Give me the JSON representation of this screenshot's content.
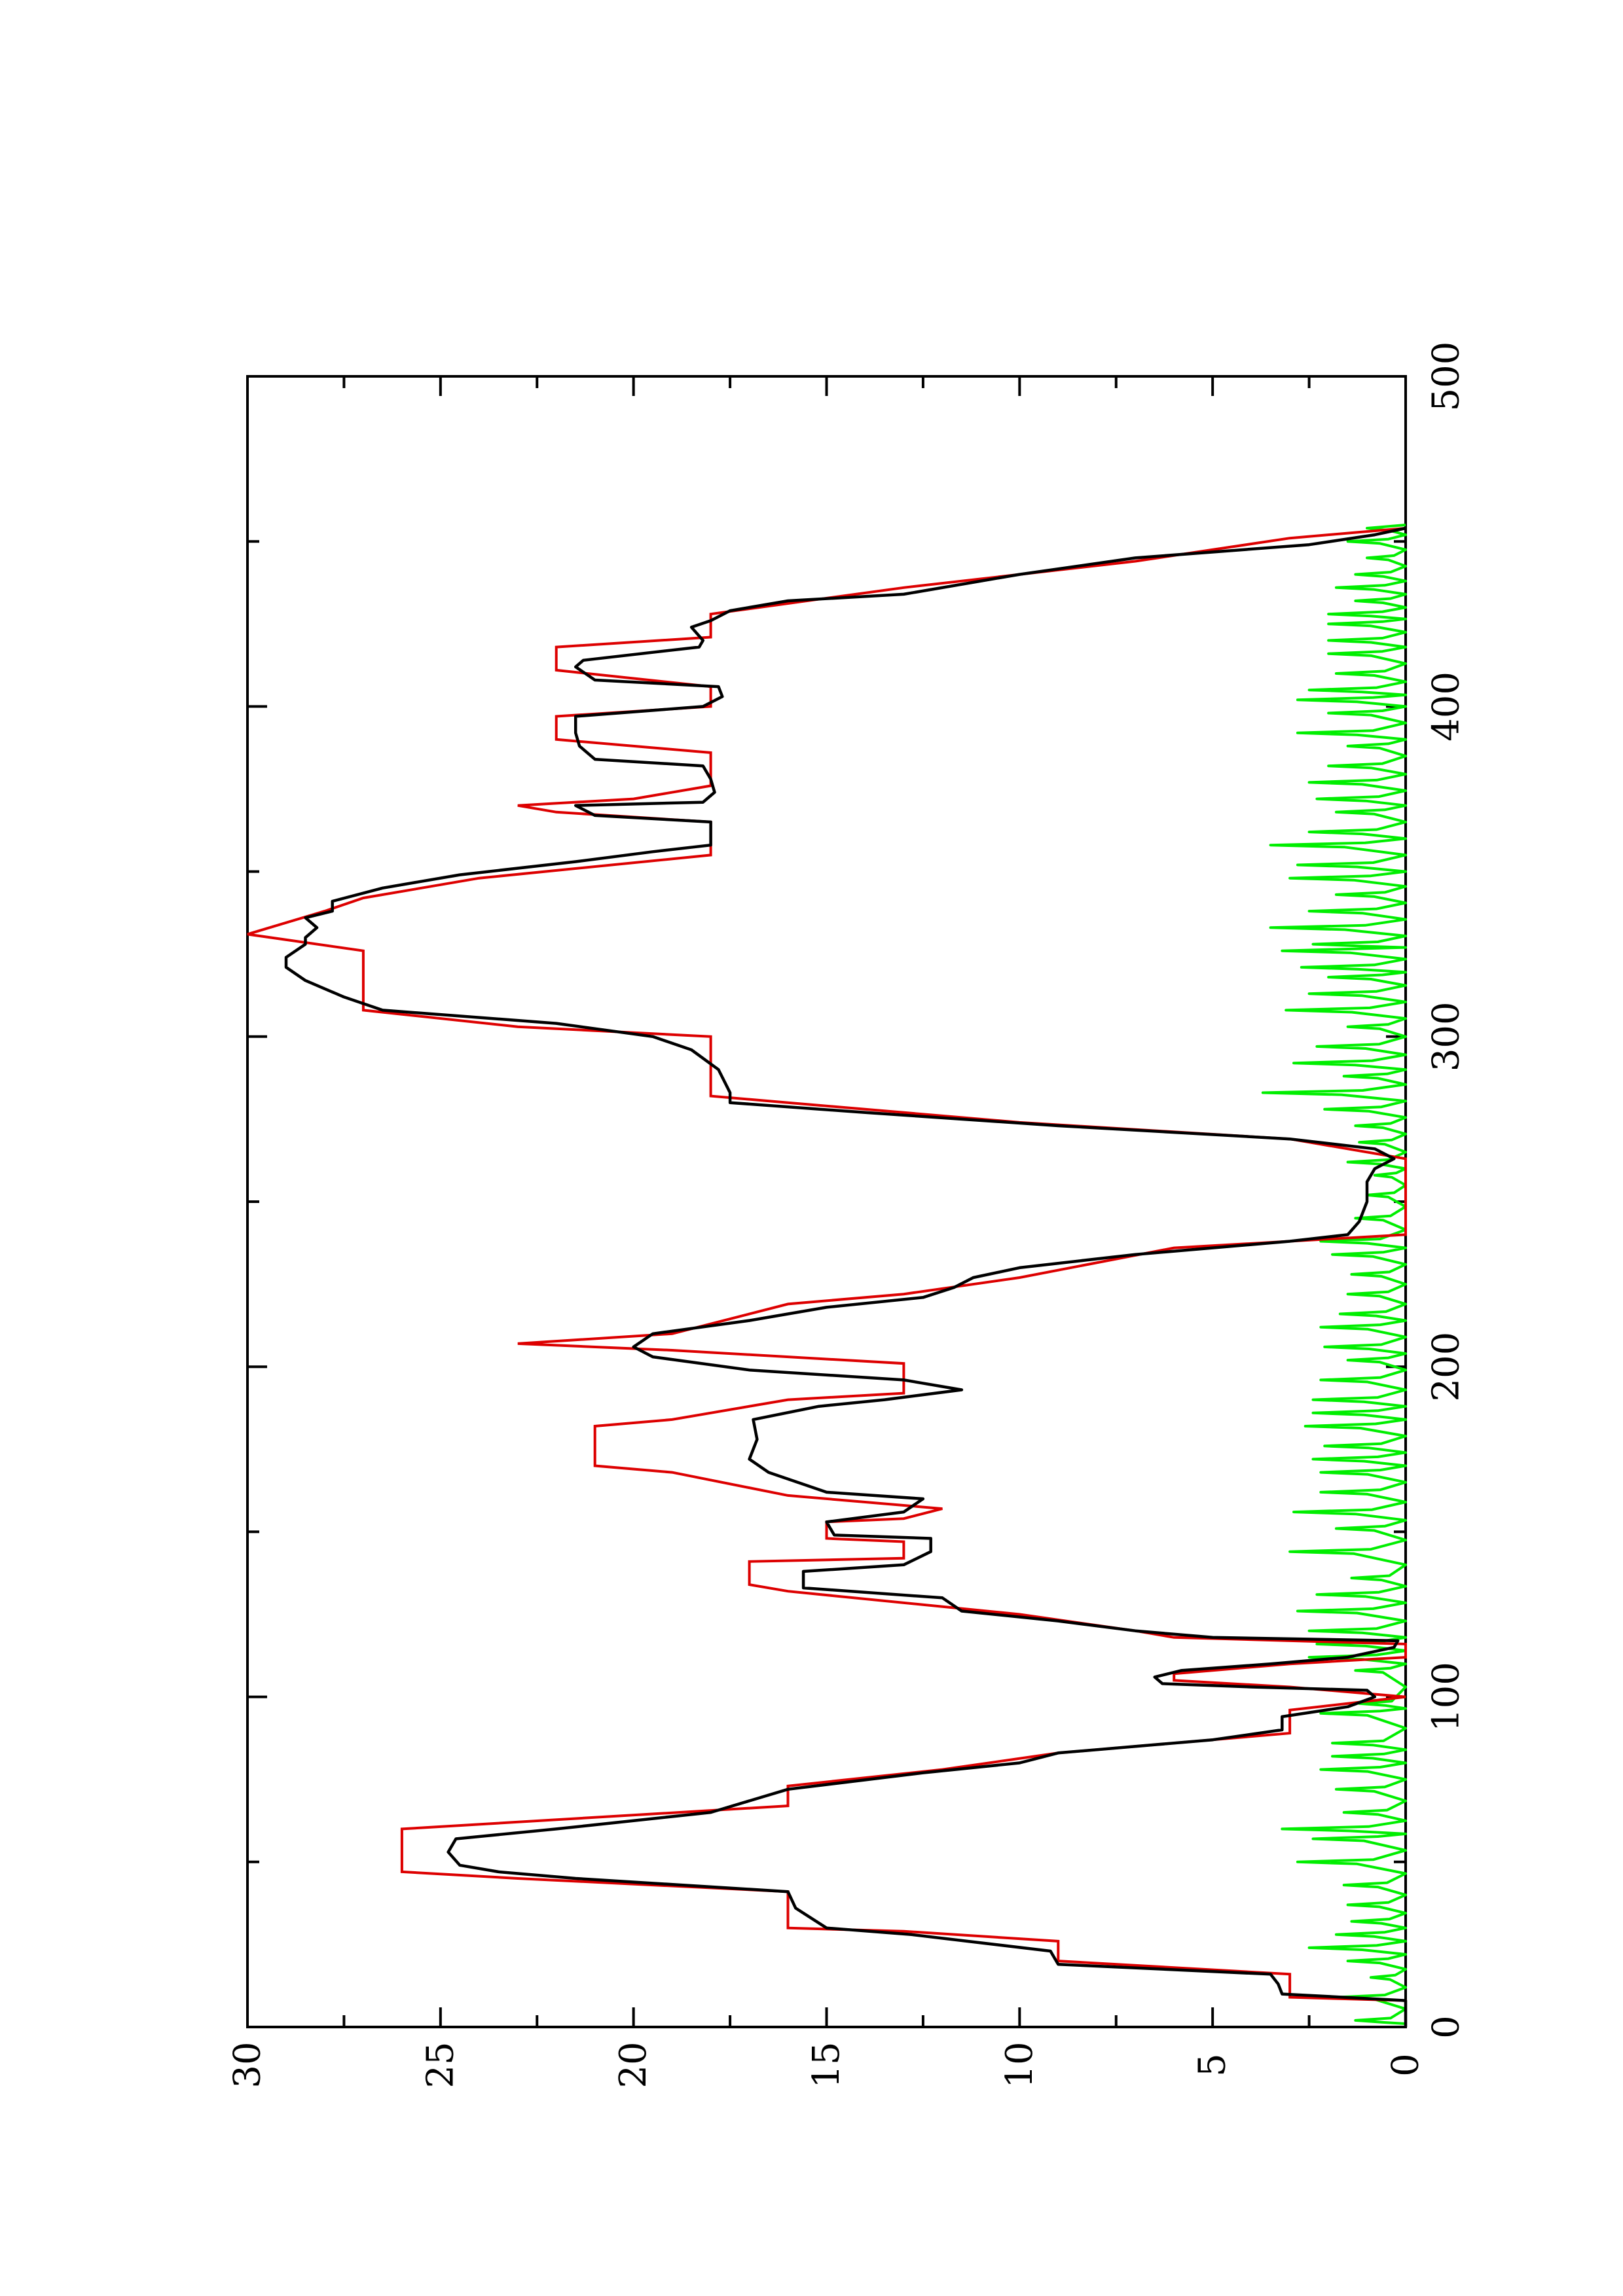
{
  "chart_data": {
    "type": "line",
    "title": "",
    "xlabel": "",
    "ylabel": "",
    "orientation": "rotated 90° counter-clockwise (landscape plot on portrait page)",
    "xlim": [
      0,
      500
    ],
    "ylim": [
      0,
      30
    ],
    "x_ticks": [
      "0",
      "100",
      "200",
      "300",
      "400",
      "500"
    ],
    "y_ticks": [
      "0",
      "5",
      "10",
      "15",
      "20",
      "25",
      "30"
    ],
    "grid": false,
    "legend": "none",
    "colors": {
      "black_series": "#000000",
      "red_series": "#dd0000",
      "green_series": "#00ee00"
    },
    "series": [
      {
        "color": "#dd0000",
        "style": "stepped",
        "points": [
          [
            0,
            0
          ],
          [
            8,
            0
          ],
          [
            9,
            3
          ],
          [
            16,
            3
          ],
          [
            20,
            9
          ],
          [
            26,
            9
          ],
          [
            29,
            13
          ],
          [
            30,
            16
          ],
          [
            41,
            16
          ],
          [
            45,
            23
          ],
          [
            47,
            26
          ],
          [
            60,
            26
          ],
          [
            67,
            16
          ],
          [
            73,
            16
          ],
          [
            78,
            12
          ],
          [
            83,
            9
          ],
          [
            89,
            3
          ],
          [
            96,
            3
          ],
          [
            100,
            0
          ],
          [
            103,
            3
          ],
          [
            105,
            6
          ],
          [
            107,
            6
          ],
          [
            110,
            3
          ],
          [
            112,
            0
          ],
          [
            116,
            0
          ],
          [
            118,
            6
          ],
          [
            120,
            7
          ],
          [
            125,
            10
          ],
          [
            132,
            16
          ],
          [
            134,
            17
          ],
          [
            141,
            17
          ],
          [
            142,
            13
          ],
          [
            147,
            13
          ],
          [
            148,
            15
          ],
          [
            153,
            15
          ],
          [
            154,
            13
          ],
          [
            157,
            12
          ],
          [
            161,
            16
          ],
          [
            168,
            19
          ],
          [
            170,
            21
          ],
          [
            182,
            21
          ],
          [
            184,
            19
          ],
          [
            190,
            16
          ],
          [
            192,
            13
          ],
          [
            201,
            13
          ],
          [
            205,
            19
          ],
          [
            207,
            23
          ],
          [
            210,
            19
          ],
          [
            219,
            16
          ],
          [
            222,
            13
          ],
          [
            227,
            10
          ],
          [
            236,
            6
          ],
          [
            238,
            3
          ],
          [
            240,
            0
          ],
          [
            263,
            0
          ],
          [
            269,
            3
          ],
          [
            274,
            10
          ],
          [
            280,
            16
          ],
          [
            282,
            18
          ],
          [
            297,
            18
          ],
          [
            300,
            18
          ],
          [
            303,
            23
          ],
          [
            308,
            27
          ],
          [
            326,
            27
          ],
          [
            331,
            30
          ],
          [
            338,
            28
          ],
          [
            342,
            27
          ],
          [
            348,
            24
          ],
          [
            355,
            18
          ],
          [
            365,
            18
          ],
          [
            368,
            22
          ],
          [
            370,
            23
          ],
          [
            372,
            20
          ],
          [
            376,
            18
          ],
          [
            386,
            18
          ],
          [
            390,
            22
          ],
          [
            397,
            22
          ],
          [
            400,
            18
          ],
          [
            406,
            18
          ],
          [
            411,
            22
          ],
          [
            418,
            22
          ],
          [
            421,
            18
          ],
          [
            428,
            18
          ],
          [
            436,
            13
          ],
          [
            444,
            7
          ],
          [
            451,
            3
          ],
          [
            454,
            0
          ]
        ]
      },
      {
        "color": "#000000",
        "style": "line",
        "points": [
          [
            0,
            0
          ],
          [
            8,
            0
          ],
          [
            10,
            3.2
          ],
          [
            13,
            3.3
          ],
          [
            16,
            3.5
          ],
          [
            19,
            9
          ],
          [
            23,
            9.2
          ],
          [
            28,
            12.8
          ],
          [
            30,
            15
          ],
          [
            36,
            15.8
          ],
          [
            41,
            16
          ],
          [
            45,
            21.5
          ],
          [
            47,
            23.5
          ],
          [
            49,
            24.5
          ],
          [
            53,
            24.8
          ],
          [
            57,
            24.6
          ],
          [
            60,
            22
          ],
          [
            65,
            18
          ],
          [
            72,
            16
          ],
          [
            77,
            12.5
          ],
          [
            80,
            10
          ],
          [
            83,
            9
          ],
          [
            87,
            5
          ],
          [
            90,
            3.2
          ],
          [
            94,
            3.2
          ],
          [
            97,
            1.5
          ],
          [
            100,
            0.8
          ],
          [
            102,
            1
          ],
          [
            103,
            4
          ],
          [
            104,
            6.3
          ],
          [
            106,
            6.5
          ],
          [
            108,
            5.8
          ],
          [
            110,
            3.5
          ],
          [
            112,
            1.5
          ],
          [
            115,
            0.3
          ],
          [
            117,
            0.2
          ],
          [
            118,
            5
          ],
          [
            120,
            7
          ],
          [
            123,
            9
          ],
          [
            126,
            11.5
          ],
          [
            130,
            12
          ],
          [
            133,
            15.6
          ],
          [
            138,
            15.6
          ],
          [
            140,
            13
          ],
          [
            144,
            12.3
          ],
          [
            148,
            12.3
          ],
          [
            149,
            14.8
          ],
          [
            153,
            15
          ],
          [
            156,
            13
          ],
          [
            160,
            12.5
          ],
          [
            162,
            15
          ],
          [
            168,
            16.5
          ],
          [
            172,
            17
          ],
          [
            178,
            16.8
          ],
          [
            184,
            16.9
          ],
          [
            188,
            15.2
          ],
          [
            190,
            13.5
          ],
          [
            193,
            11.5
          ],
          [
            196,
            13
          ],
          [
            199,
            17
          ],
          [
            203,
            19.5
          ],
          [
            206,
            20
          ],
          [
            210,
            19.5
          ],
          [
            214,
            17
          ],
          [
            218,
            15
          ],
          [
            221,
            12.5
          ],
          [
            224,
            11.7
          ],
          [
            227,
            11.2
          ],
          [
            230,
            10
          ],
          [
            234,
            7
          ],
          [
            238,
            3
          ],
          [
            240,
            1.5
          ],
          [
            244,
            1.2
          ],
          [
            250,
            1
          ],
          [
            256,
            1
          ],
          [
            260,
            0.8
          ],
          [
            263,
            0.3
          ],
          [
            266,
            0.8
          ],
          [
            269,
            3
          ],
          [
            273,
            9
          ],
          [
            277,
            14
          ],
          [
            280,
            17.5
          ],
          [
            283,
            17.5
          ],
          [
            290,
            17.8
          ],
          [
            296,
            18.5
          ],
          [
            300,
            19.5
          ],
          [
            304,
            22
          ],
          [
            308,
            26.5
          ],
          [
            312,
            27.5
          ],
          [
            317,
            28.5
          ],
          [
            321,
            29
          ],
          [
            324,
            29
          ],
          [
            328,
            28.5
          ],
          [
            330,
            28.5
          ],
          [
            333,
            28.2
          ],
          [
            336,
            28.5
          ],
          [
            338,
            27.8
          ],
          [
            341,
            27.8
          ],
          [
            345,
            26.5
          ],
          [
            349,
            24.5
          ],
          [
            353,
            21.5
          ],
          [
            356,
            19.5
          ],
          [
            358,
            18
          ],
          [
            362,
            18
          ],
          [
            365,
            18
          ],
          [
            367,
            21
          ],
          [
            370,
            21.5
          ],
          [
            371,
            18.2
          ],
          [
            374,
            17.9
          ],
          [
            378,
            18
          ],
          [
            382,
            18.2
          ],
          [
            384,
            21
          ],
          [
            388,
            21.4
          ],
          [
            392,
            21.5
          ],
          [
            397,
            21.5
          ],
          [
            400,
            18.2
          ],
          [
            403,
            17.7
          ],
          [
            406,
            17.8
          ],
          [
            408,
            21
          ],
          [
            412,
            21.5
          ],
          [
            414,
            21.3
          ],
          [
            418,
            18.3
          ],
          [
            420,
            18.2
          ],
          [
            424,
            18.5
          ],
          [
            426,
            18
          ],
          [
            429,
            17.5
          ],
          [
            432,
            16
          ],
          [
            434,
            13
          ],
          [
            440,
            10
          ],
          [
            445,
            7
          ],
          [
            449,
            2.5
          ],
          [
            452,
            0.8
          ],
          [
            454,
            0
          ]
        ]
      },
      {
        "color": "#00ee00",
        "style": "noisy line",
        "baseline": 0,
        "peaks": [
          [
            2,
            1.3
          ],
          [
            9,
            1.8
          ],
          [
            15,
            0.9
          ],
          [
            20,
            1.5
          ],
          [
            24,
            2.5
          ],
          [
            28,
            1.8
          ],
          [
            32,
            1.4
          ],
          [
            37,
            1.5
          ],
          [
            43,
            1.6
          ],
          [
            50,
            2.8
          ],
          [
            57,
            2.4
          ],
          [
            60,
            3.2
          ],
          [
            65,
            1.6
          ],
          [
            72,
            1.8
          ],
          [
            78,
            2.2
          ],
          [
            82,
            1.9
          ],
          [
            86,
            1.9
          ],
          [
            95,
            2.2
          ],
          [
            98,
            1.2
          ],
          [
            108,
            1.3
          ],
          [
            112,
            2.5
          ],
          [
            116,
            2.3
          ],
          [
            120,
            2.5
          ],
          [
            126,
            2.8
          ],
          [
            131,
            2.3
          ],
          [
            136,
            1.4
          ],
          [
            144,
            3
          ],
          [
            151,
            1.8
          ],
          [
            156,
            2.9
          ],
          [
            162,
            2.2
          ],
          [
            168,
            2.2
          ],
          [
            172,
            2.4
          ],
          [
            176,
            2.1
          ],
          [
            182,
            2.6
          ],
          [
            186,
            2.4
          ],
          [
            190,
            2.4
          ],
          [
            196,
            2.2
          ],
          [
            202,
            1.5
          ],
          [
            206,
            2.1
          ],
          [
            212,
            2.2
          ],
          [
            216,
            1.7
          ],
          [
            222,
            1.5
          ],
          [
            228,
            1.4
          ],
          [
            234,
            1.9
          ],
          [
            238,
            2.2
          ],
          [
            245,
            1.3
          ],
          [
            252,
            1.0
          ],
          [
            258,
            0.8
          ],
          [
            262,
            1.5
          ],
          [
            268,
            1.2
          ],
          [
            273,
            1.3
          ],
          [
            278,
            2.1
          ],
          [
            283,
            3.7
          ],
          [
            288,
            1.6
          ],
          [
            292,
            2.9
          ],
          [
            297,
            2.3
          ],
          [
            303,
            1.5
          ],
          [
            308,
            3.1
          ],
          [
            313,
            2.5
          ],
          [
            318,
            2
          ],
          [
            321,
            2.7
          ],
          [
            326,
            3.2
          ],
          [
            328,
            2.4
          ],
          [
            333,
            3.5
          ],
          [
            338,
            2.5
          ],
          [
            343,
            1.8
          ],
          [
            348,
            3
          ],
          [
            352,
            2.8
          ],
          [
            358,
            3.5
          ],
          [
            362,
            2.5
          ],
          [
            368,
            1.8
          ],
          [
            372,
            2.3
          ],
          [
            377,
            2.5
          ],
          [
            382,
            2
          ],
          [
            388,
            1.5
          ],
          [
            392,
            2.8
          ],
          [
            398,
            2
          ],
          [
            402,
            2.8
          ],
          [
            405,
            2.5
          ],
          [
            410,
            1.8
          ],
          [
            416,
            2
          ],
          [
            420,
            2
          ],
          [
            425,
            2
          ],
          [
            428,
            2
          ],
          [
            432,
            1.3
          ],
          [
            436,
            1.8
          ],
          [
            440,
            1.3
          ],
          [
            445,
            1
          ],
          [
            450,
            1.5
          ],
          [
            454,
            1
          ]
        ]
      }
    ]
  }
}
